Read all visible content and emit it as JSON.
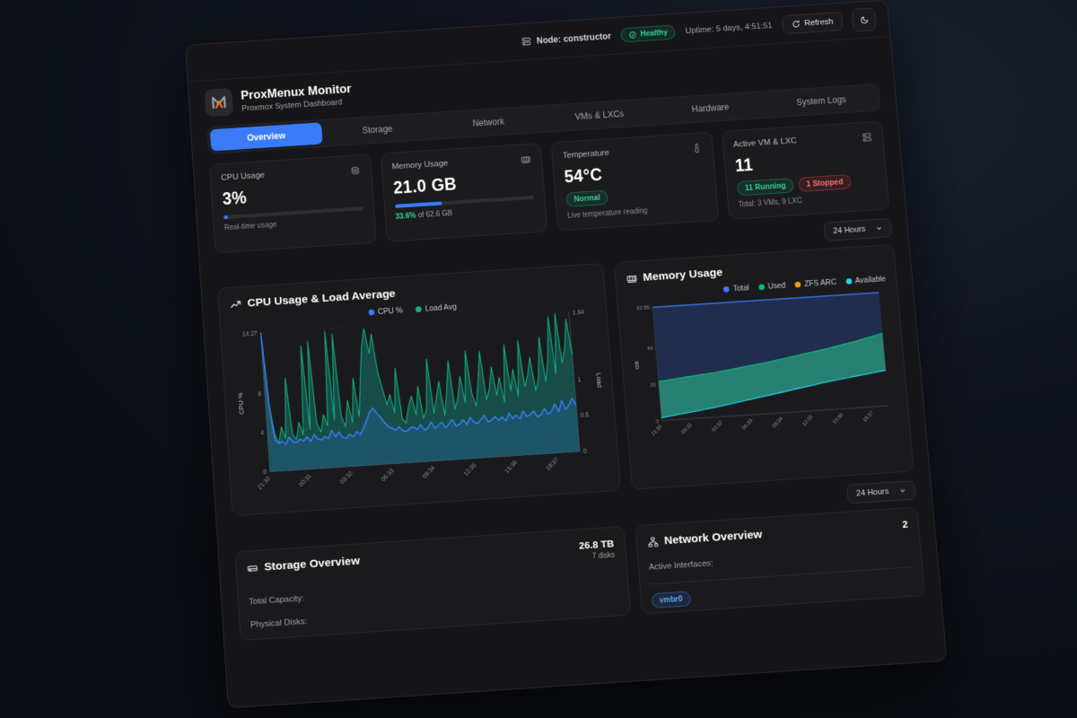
{
  "topbar": {
    "node_label": "Node: constructor",
    "health_badge": "Healthy",
    "uptime": "Uptime: 5 days, 4:51:51",
    "refresh_label": "Refresh"
  },
  "header": {
    "title": "ProxMenux Monitor",
    "subtitle": "Proxmox System Dashboard"
  },
  "tabs": {
    "items": [
      {
        "label": "Overview",
        "active": true
      },
      {
        "label": "Storage",
        "active": false
      },
      {
        "label": "Network",
        "active": false
      },
      {
        "label": "VMs & LXCs",
        "active": false
      },
      {
        "label": "Hardware",
        "active": false
      },
      {
        "label": "System Logs",
        "active": false
      }
    ]
  },
  "stats": {
    "cpu": {
      "label": "CPU Usage",
      "value": "3%",
      "foot": "Real-time usage",
      "progress": 3
    },
    "memory": {
      "label": "Memory Usage",
      "value": "21.0 GB",
      "pct": "33.6%",
      "of_text": " of 62.6 GB",
      "progress": 33.6
    },
    "temperature": {
      "label": "Temperature",
      "value": "54°C",
      "badge": "Normal",
      "foot": "Live temperature reading"
    },
    "vm": {
      "label": "Active VM & LXC",
      "value": "11",
      "running": "11 Running",
      "stopped": "1 Stopped",
      "foot": "Total: 3 VMs, 9 LXC"
    }
  },
  "time_range": {
    "label": "24 Hours"
  },
  "storage": {
    "title": "Storage Overview",
    "total": "26.8 TB",
    "disks": "7 disks",
    "row1": "Total Capacity:",
    "row2": "Physical Disks:"
  },
  "network": {
    "title": "Network Overview",
    "count": "2",
    "row1": "Active Interfaces:",
    "badge": "vmbr0"
  },
  "colors": {
    "accent": "#3b7bfa",
    "green": "#10b981",
    "red": "#ef4444",
    "orange": "#f59e0b",
    "cyan": "#22d3ee"
  },
  "chart_data": [
    {
      "type": "line",
      "title": "CPU Usage & Load Average",
      "x_ticks": [
        "21:30",
        "00:31",
        "03:32",
        "06:33",
        "09:34",
        "12:35",
        "15:36",
        "18:37"
      ],
      "left_axis": {
        "label": "CPU %",
        "max": 14.27,
        "ticks": [
          0,
          4,
          8,
          14.27
        ]
      },
      "right_axis": {
        "label": "Load",
        "max": 1.94,
        "ticks": [
          0,
          0.5,
          1,
          1.94
        ]
      },
      "grid": true,
      "legend_position": "top-center",
      "series": [
        {
          "name": "CPU %",
          "axis": "left",
          "color": "#3b7bfa",
          "fill": "rgba(59,123,250,0.18)",
          "line_width": 1.8,
          "values": [
            14.27,
            6.5,
            3.2,
            2.8,
            3.0,
            2.7,
            3.4,
            2.9,
            2.8,
            3.1,
            2.9,
            3.3,
            2.8,
            3.5,
            3.0,
            2.9,
            3.2,
            3.0,
            3.8,
            3.1,
            3.6,
            3.0,
            2.9,
            3.3,
            3.0,
            3.5,
            3.2,
            3.8,
            4.6,
            5.4,
            5.8,
            5.2,
            4.8,
            4.2,
            3.8,
            3.6,
            3.4,
            3.7,
            3.3,
            3.2,
            3.5,
            3.6,
            3.3,
            3.8,
            3.2,
            3.4,
            4.0,
            3.3,
            3.6,
            3.9,
            3.3,
            3.7,
            4.1,
            3.4,
            3.6,
            4.0,
            3.5,
            4.2,
            3.7,
            3.5,
            3.9,
            4.3,
            3.6,
            3.8,
            4.1,
            3.7,
            4.0,
            3.6,
            4.4,
            3.8,
            4.1,
            3.7,
            4.5,
            3.9,
            4.1,
            4.4,
            3.8,
            4.0,
            4.6,
            4.0,
            4.3,
            5.0,
            4.2,
            5.3,
            4.4,
            4.8,
            5.5,
            4.7
          ]
        },
        {
          "name": "Load Avg",
          "axis": "right",
          "color": "#10b981",
          "fill": "rgba(20,184,166,0.32)",
          "line_width": 1.2,
          "values": [
            1.88,
            0.9,
            0.52,
            0.38,
            0.61,
            0.45,
            1.28,
            0.5,
            0.42,
            0.66,
            0.48,
            1.72,
            0.55,
            1.78,
            0.62,
            0.5,
            0.74,
            0.58,
            1.9,
            0.66,
            1.86,
            0.7,
            0.55,
            0.92,
            0.6,
            1.22,
            0.68,
            1.18,
            1.65,
            1.9,
            1.55,
            1.82,
            1.3,
            1.05,
            0.82,
            0.96,
            0.7,
            1.32,
            0.62,
            0.55,
            0.78,
            0.92,
            0.65,
            1.05,
            0.6,
            0.72,
            1.42,
            0.66,
            0.88,
            1.1,
            0.62,
            0.95,
            1.38,
            0.7,
            0.85,
            1.15,
            0.78,
            1.5,
            0.9,
            0.72,
            1.05,
            1.48,
            0.8,
            0.95,
            1.25,
            0.85,
            1.1,
            0.75,
            1.55,
            0.9,
            1.2,
            0.82,
            1.6,
            0.95,
            1.1,
            1.35,
            0.88,
            1.05,
            1.62,
            1.0,
            1.3,
            1.9,
            1.1,
            1.94,
            1.25,
            1.45,
            1.85,
            1.35
          ]
        }
      ]
    },
    {
      "type": "area",
      "title": "Memory Usage",
      "x_ticks": [
        "21:30",
        "00:31",
        "03:32",
        "06:33",
        "09:34",
        "12:35",
        "15:36",
        "18:37"
      ],
      "y_axis": {
        "label": "GB",
        "max": 62.56,
        "ticks": [
          0,
          20,
          40,
          62.56
        ]
      },
      "grid": true,
      "legend_position": "top-right",
      "series": [
        {
          "name": "Total",
          "color": "#3b7bfa",
          "line_width": 2,
          "values": [
            62.56,
            62.56,
            62.56,
            62.56,
            62.56,
            62.56,
            62.56,
            62.56,
            62.56
          ]
        },
        {
          "name": "Used",
          "color": "#10b981",
          "line_width": 1.6,
          "values": [
            21.5,
            23,
            24.5,
            26.5,
            28.5,
            31,
            33.5,
            36.5,
            40
          ]
        },
        {
          "name": "ZFS ARC",
          "color": "#f59e0b",
          "line_width": 1.6,
          "values": null
        },
        {
          "name": "Available",
          "color": "#22d3ee",
          "line_width": 1.6,
          "values": [
            1.5,
            3.5,
            5.5,
            8,
            10.5,
            13,
            15.5,
            17.5,
            19.5
          ]
        }
      ],
      "bands": [
        {
          "top": "Total",
          "bottom": "Used",
          "fill": "rgba(34,48,84,0.9)"
        },
        {
          "top": "Used",
          "bottom": "Available",
          "fill": "rgba(42,148,128,0.85)"
        }
      ]
    }
  ]
}
